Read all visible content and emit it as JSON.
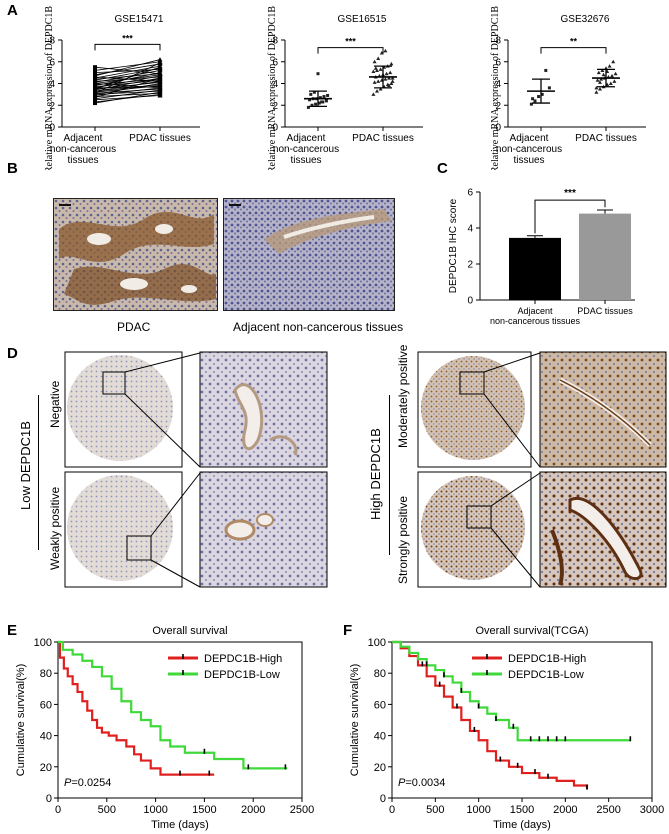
{
  "panels": {
    "A": {
      "letter": "A"
    },
    "B": {
      "letter": "B",
      "captions": [
        "PDAC",
        "Adjacent  non-cancerous tissues"
      ]
    },
    "C": {
      "letter": "C"
    },
    "D": {
      "letter": "D",
      "group_low": "Low  DEPDC1B",
      "group_high": "High  DEPDC1B",
      "rows": [
        "Negative",
        "Weakly positive",
        "Moderately positive",
        "Strongly positive"
      ]
    },
    "E": {
      "letter": "E"
    },
    "F": {
      "letter": "F"
    }
  },
  "colors": {
    "high": "#e0201f",
    "low": "#3fd93a",
    "bar_adjacent": "#000000",
    "bar_pdac": "#999999",
    "stain_brown": "#8a5a2e",
    "stain_blue": "#8d92b8"
  },
  "chart_data": [
    {
      "id": "A1",
      "type": "scatter",
      "title": "GSE15471",
      "subtype": "paired-lines",
      "ylabel": "Relative mRNA expression of DEPDC1B",
      "categories": [
        "Adjacent\nnon-cancerous\ntissues",
        "PDAC tissues"
      ],
      "category_lines": [
        [
          "Adjacent",
          "non-cancerous",
          "tissues"
        ],
        [
          "PDAC tissues"
        ]
      ],
      "ylim": [
        0,
        8
      ],
      "yticks": [
        0,
        2,
        4,
        6,
        8
      ],
      "significance": "***",
      "pairs": [
        [
          2.3,
          3.0
        ],
        [
          2.5,
          2.9
        ],
        [
          2.6,
          3.4
        ],
        [
          2.8,
          3.1
        ],
        [
          2.9,
          3.6
        ],
        [
          3.0,
          3.3
        ],
        [
          3.0,
          4.0
        ],
        [
          3.1,
          3.5
        ],
        [
          3.2,
          3.8
        ],
        [
          3.3,
          4.2
        ],
        [
          3.3,
          3.9
        ],
        [
          3.4,
          4.5
        ],
        [
          3.5,
          4.1
        ],
        [
          3.6,
          4.7
        ],
        [
          3.6,
          3.7
        ],
        [
          3.7,
          4.3
        ],
        [
          3.8,
          5.0
        ],
        [
          3.9,
          4.4
        ],
        [
          4.0,
          4.8
        ],
        [
          4.0,
          3.6
        ],
        [
          4.1,
          5.2
        ],
        [
          4.2,
          4.6
        ],
        [
          4.3,
          5.4
        ],
        [
          4.4,
          4.9
        ],
        [
          4.5,
          5.6
        ],
        [
          4.6,
          4.2
        ],
        [
          4.8,
          5.8
        ],
        [
          5.0,
          5.3
        ],
        [
          5.2,
          6.0
        ],
        [
          5.5,
          4.9
        ],
        [
          3.1,
          5.9
        ],
        [
          2.7,
          4.5
        ],
        [
          4.7,
          6.2
        ],
        [
          3.5,
          5.5
        ],
        [
          2.2,
          3.2
        ]
      ]
    },
    {
      "id": "A2",
      "type": "scatter",
      "title": "GSE16515",
      "subtype": "mean-sd",
      "ylabel": "Relative mRNA expression of DEPDC1B",
      "categories": [
        "Adjacent\nnon-cancerous\ntissues",
        "PDAC tissues"
      ],
      "category_lines": [
        [
          "Adjacent",
          "non-cancerous",
          "tissues"
        ],
        [
          "PDAC tissues"
        ]
      ],
      "ylim": [
        0,
        8
      ],
      "yticks": [
        0,
        2,
        4,
        6,
        8
      ],
      "significance": "***",
      "series": [
        {
          "mean": 2.6,
          "sd": 0.7,
          "values": [
            1.8,
            2.0,
            2.1,
            2.2,
            2.3,
            2.4,
            2.5,
            2.6,
            2.6,
            2.7,
            2.8,
            2.9,
            3.0,
            3.2,
            4.9,
            2.3
          ]
        },
        {
          "mean": 4.6,
          "sd": 1.0,
          "values": [
            3.0,
            3.3,
            3.5,
            3.7,
            3.9,
            4.0,
            4.1,
            4.2,
            4.3,
            4.4,
            4.5,
            4.5,
            4.6,
            4.7,
            4.8,
            4.9,
            5.0,
            5.1,
            5.2,
            5.3,
            5.5,
            5.6,
            5.8,
            6.0,
            6.3,
            6.8,
            7.0,
            3.8,
            4.2,
            5.4
          ]
        }
      ]
    },
    {
      "id": "A3",
      "type": "scatter",
      "title": "GSE32676",
      "subtype": "mean-sd",
      "ylabel": "Relative mRNA expression of DEPDC1B",
      "categories": [
        "Adjacent\nnon-cancerous\ntissues",
        "PDAC tissues"
      ],
      "category_lines": [
        [
          "Adjacent",
          "non-cancerous",
          "tissues"
        ],
        [
          "PDAC tissues"
        ]
      ],
      "ylim": [
        0,
        8
      ],
      "yticks": [
        0,
        2,
        4,
        6,
        8
      ],
      "significance": "**",
      "series": [
        {
          "mean": 3.3,
          "sd": 1.1,
          "values": [
            2.1,
            2.4,
            2.8,
            3.0,
            5.2,
            3.6,
            2.6
          ]
        },
        {
          "mean": 4.5,
          "sd": 0.8,
          "values": [
            3.2,
            3.5,
            3.7,
            3.9,
            4.0,
            4.2,
            4.3,
            4.4,
            4.5,
            4.6,
            4.7,
            4.9,
            5.0,
            5.2,
            5.4,
            5.6,
            6.0,
            3.6,
            4.1,
            4.8,
            5.1
          ]
        }
      ]
    },
    {
      "id": "C",
      "type": "bar",
      "categories": [
        "Adjacent\nnon-cancerous tissues",
        "PDAC tissues"
      ],
      "category_lines": [
        [
          "Adjacent",
          "non-cancerous tissues"
        ],
        [
          "PDAC tissues"
        ]
      ],
      "values": [
        3.45,
        4.8
      ],
      "errors": [
        0.12,
        0.2
      ],
      "ylabel": "DEPDC1B IHC score",
      "ylim": [
        0,
        6
      ],
      "yticks": [
        0,
        2,
        4,
        6
      ],
      "significance": "***"
    },
    {
      "id": "E",
      "type": "line",
      "subtype": "kaplan-meier",
      "title": "Overall survival",
      "xlabel": "Time  (days)",
      "ylabel": "Cumulative survival(%)",
      "xlim": [
        0,
        2500
      ],
      "ylim": [
        0,
        100
      ],
      "xticks": [
        0,
        500,
        1000,
        1500,
        2000,
        2500
      ],
      "yticks": [
        0,
        20,
        40,
        60,
        80,
        100
      ],
      "pvalue_label": "P",
      "pvalue": "=0.0254",
      "series": [
        {
          "name": "DEPDC1B-High",
          "steps": [
            [
              0,
              100
            ],
            [
              20,
              90
            ],
            [
              60,
              83
            ],
            [
              100,
              78
            ],
            [
              150,
              73
            ],
            [
              200,
              68
            ],
            [
              250,
              62
            ],
            [
              300,
              56
            ],
            [
              350,
              50
            ],
            [
              400,
              45
            ],
            [
              450,
              42
            ],
            [
              520,
              40
            ],
            [
              600,
              37
            ],
            [
              700,
              33
            ],
            [
              780,
              28
            ],
            [
              850,
              24
            ],
            [
              950,
              19
            ],
            [
              1050,
              15
            ],
            [
              1600,
              15
            ]
          ],
          "censor": [
            1250,
            1550
          ]
        },
        {
          "name": "DEPDC1B-Low",
          "steps": [
            [
              0,
              100
            ],
            [
              50,
              95
            ],
            [
              150,
              92
            ],
            [
              250,
              88
            ],
            [
              350,
              84
            ],
            [
              450,
              78
            ],
            [
              550,
              70
            ],
            [
              650,
              62
            ],
            [
              750,
              55
            ],
            [
              850,
              50
            ],
            [
              950,
              46
            ],
            [
              1050,
              37
            ],
            [
              1150,
              33
            ],
            [
              1300,
              29
            ],
            [
              1600,
              25
            ],
            [
              1900,
              19
            ],
            [
              2350,
              19
            ]
          ],
          "censor": [
            1500,
            1950,
            2330
          ]
        }
      ]
    },
    {
      "id": "F",
      "type": "line",
      "subtype": "kaplan-meier",
      "title": "Overall survival(TCGA)",
      "xlabel": "Time  (days)",
      "ylabel": "Cumulative survival(%)",
      "xlim": [
        0,
        3000
      ],
      "ylim": [
        0,
        100
      ],
      "xticks": [
        0,
        500,
        1000,
        1500,
        2000,
        2500,
        3000
      ],
      "yticks": [
        0,
        20,
        40,
        60,
        80,
        100
      ],
      "pvalue_label": "P",
      "pvalue": "=0.0034",
      "series": [
        {
          "name": "DEPDC1B-High",
          "steps": [
            [
              0,
              100
            ],
            [
              100,
              96
            ],
            [
              200,
              91
            ],
            [
              300,
              85
            ],
            [
              400,
              78
            ],
            [
              500,
              72
            ],
            [
              600,
              65
            ],
            [
              700,
              58
            ],
            [
              800,
              50
            ],
            [
              900,
              43
            ],
            [
              1000,
              37
            ],
            [
              1100,
              30
            ],
            [
              1200,
              24
            ],
            [
              1350,
              20
            ],
            [
              1500,
              16
            ],
            [
              1700,
              13
            ],
            [
              1900,
              11
            ],
            [
              2100,
              8
            ],
            [
              2250,
              6
            ]
          ],
          "censor": [
            350,
            550,
            750,
            950,
            1250,
            1450,
            1650,
            1800,
            2250
          ]
        },
        {
          "name": "DEPDC1B-Low",
          "steps": [
            [
              0,
              100
            ],
            [
              100,
              97
            ],
            [
              200,
              93
            ],
            [
              300,
              89
            ],
            [
              400,
              85
            ],
            [
              500,
              82
            ],
            [
              600,
              78
            ],
            [
              700,
              74
            ],
            [
              800,
              68
            ],
            [
              900,
              62
            ],
            [
              1000,
              58
            ],
            [
              1100,
              54
            ],
            [
              1200,
              50
            ],
            [
              1350,
              45
            ],
            [
              1450,
              37
            ],
            [
              2750,
              37
            ]
          ],
          "censor": [
            400,
            600,
            800,
            1000,
            1200,
            1400,
            1600,
            1700,
            1800,
            1900,
            2000,
            2750
          ]
        }
      ]
    }
  ]
}
